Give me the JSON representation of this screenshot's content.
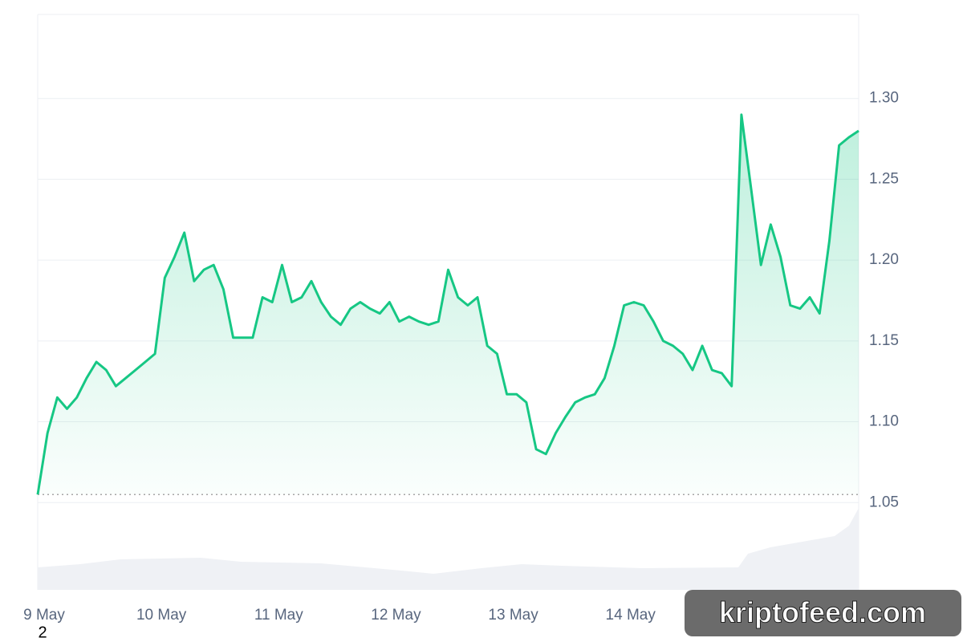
{
  "chart_data": {
    "type": "line",
    "categories": [
      "9 May",
      null,
      null,
      null,
      null,
      null,
      null,
      null,
      null,
      null,
      null,
      null,
      "10 May",
      null,
      null,
      null,
      null,
      null,
      null,
      null,
      null,
      null,
      null,
      null,
      "11 May",
      null,
      null,
      null,
      null,
      null,
      null,
      null,
      null,
      null,
      null,
      null,
      "12 May",
      null,
      null,
      null,
      null,
      null,
      null,
      null,
      null,
      null,
      null,
      null,
      "13 May",
      null,
      null,
      null,
      null,
      null,
      null,
      null,
      null,
      null,
      null,
      null,
      "14 May",
      null,
      null,
      null,
      null,
      null,
      null,
      null,
      null,
      null,
      null,
      null,
      null,
      null,
      null,
      null,
      null,
      null,
      null,
      null,
      null,
      null,
      null,
      null,
      null
    ],
    "values": [
      1.055,
      1.093,
      1.115,
      1.108,
      1.115,
      1.127,
      1.137,
      1.132,
      1.122,
      1.127,
      1.132,
      1.137,
      1.142,
      1.189,
      1.202,
      1.217,
      1.187,
      1.194,
      1.197,
      1.182,
      1.152,
      1.152,
      1.152,
      1.177,
      1.174,
      1.197,
      1.174,
      1.177,
      1.187,
      1.174,
      1.165,
      1.16,
      1.17,
      1.174,
      1.17,
      1.167,
      1.174,
      1.162,
      1.165,
      1.162,
      1.16,
      1.162,
      1.194,
      1.177,
      1.172,
      1.177,
      1.147,
      1.142,
      1.117,
      1.117,
      1.112,
      1.083,
      1.08,
      1.093,
      1.103,
      1.112,
      1.115,
      1.117,
      1.127,
      1.147,
      1.172,
      1.174,
      1.172,
      1.162,
      1.15,
      1.147,
      1.142,
      1.132,
      1.147,
      1.132,
      1.13,
      1.122,
      1.29,
      1.244,
      1.197,
      1.222,
      1.202,
      1.172,
      1.17,
      1.177,
      1.167,
      1.212,
      1.271,
      1.276,
      1.28
    ],
    "color": "#16c784",
    "baseline": 1.055,
    "ylim": [
      0.996,
      1.352
    ],
    "yticks": [
      1.05,
      {
        "value": 1.1,
        "label": "1.10"
      },
      1.15,
      {
        "value": 1.2,
        "label": "1.20"
      },
      1.25,
      {
        "value": 1.3,
        "label": "1.30"
      }
    ],
    "grid": true
  },
  "watermark": "kriptofeed.com",
  "page_marker": "2"
}
